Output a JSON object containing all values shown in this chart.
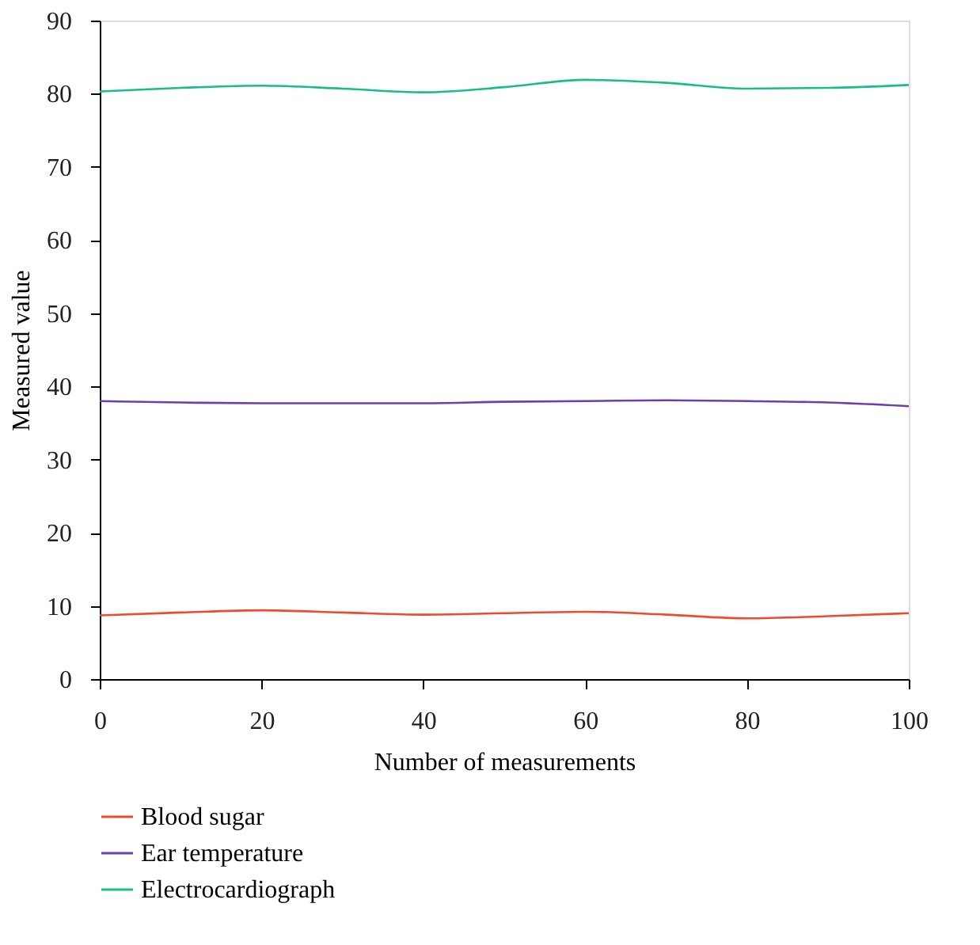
{
  "chart_data": {
    "type": "line",
    "xlabel": "Number of measurements",
    "ylabel": "Measured value",
    "x": [
      0,
      10,
      20,
      30,
      40,
      50,
      60,
      70,
      80,
      90,
      100
    ],
    "series": [
      {
        "name": "Blood sugar",
        "color": "#f04a2e",
        "values": [
          8.7,
          9.1,
          9.4,
          9.1,
          8.8,
          9.0,
          9.2,
          8.8,
          8.3,
          8.6,
          9.0
        ]
      },
      {
        "name": "Ear temperature",
        "color": "#6a3fb0",
        "values": [
          38.0,
          37.8,
          37.7,
          37.7,
          37.7,
          37.9,
          38.0,
          38.1,
          38.0,
          37.8,
          37.3
        ]
      },
      {
        "name": "Electrocardiograph",
        "color": "#1abc8c",
        "values": [
          80.3,
          80.8,
          81.1,
          80.7,
          80.2,
          80.9,
          81.9,
          81.5,
          80.7,
          80.8,
          81.2
        ]
      }
    ],
    "xlim": [
      0,
      100
    ],
    "xticks": [
      0,
      20,
      40,
      60,
      80,
      100
    ],
    "ylim": [
      0,
      90
    ],
    "yticks": [
      0,
      10,
      20,
      30,
      40,
      50,
      60,
      70,
      80,
      90
    ],
    "grid": false,
    "legend": "bottom",
    "marker": "none",
    "line_style": "solid"
  }
}
